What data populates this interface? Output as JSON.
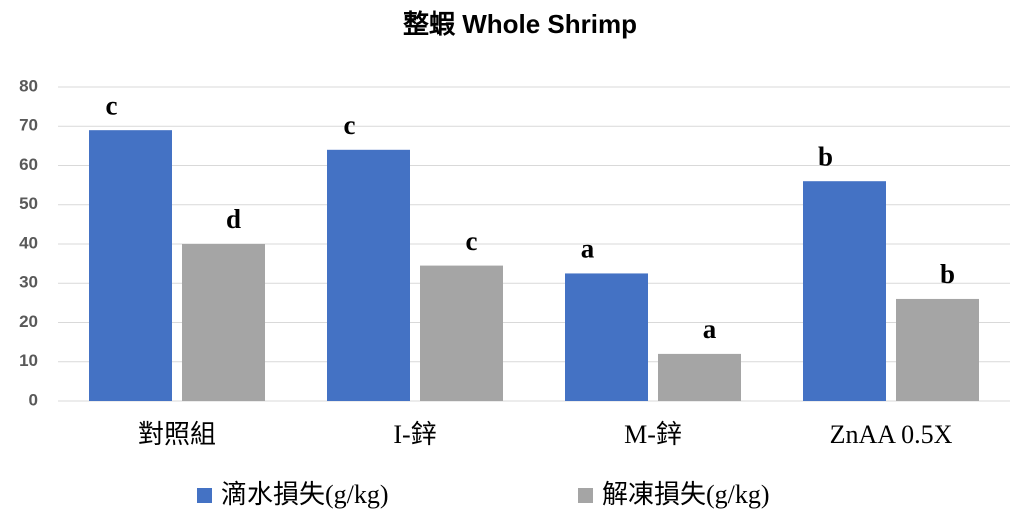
{
  "chart_data": {
    "type": "bar",
    "title": "整蝦 Whole Shrimp",
    "categories": [
      "對照組",
      "I-鋅",
      "M-鋅",
      "ZnAA 0.5X"
    ],
    "series": [
      {
        "name": "滴水損失(g/kg)",
        "color": "#4472c4",
        "values": [
          69,
          64,
          32.5,
          56
        ],
        "annotations": [
          "c",
          "c",
          "a",
          "b"
        ]
      },
      {
        "name": "解凍損失(g/kg)",
        "color": "#a5a5a5",
        "values": [
          40,
          34.5,
          12,
          26
        ],
        "annotations": [
          "d",
          "c",
          "a",
          "b"
        ]
      }
    ],
    "ylim": [
      0,
      80
    ],
    "yticks": [
      0,
      10,
      20,
      30,
      40,
      50,
      60,
      70,
      80
    ],
    "grid": true,
    "legend": "bottom"
  }
}
